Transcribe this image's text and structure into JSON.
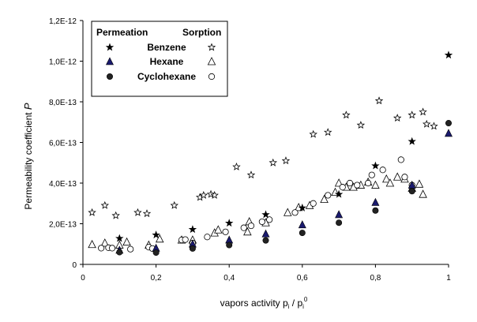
{
  "chart_data": {
    "type": "scatter",
    "xlabel": "vapors activity p",
    "xlabel_sub1": "i",
    "xlabel_mid": " / p",
    "xlabel_sub2": "i",
    "xlabel_sup": "0",
    "ylabel": "Permeability coefficient",
    "ylabel_symbol": "P",
    "xlim": [
      0,
      1
    ],
    "ylim": [
      0,
      1.2e-12
    ],
    "x_ticks": [
      {
        "value": 0,
        "label": "0"
      },
      {
        "value": 0.2,
        "label": "0,2"
      },
      {
        "value": 0.4,
        "label": "0,4"
      },
      {
        "value": 0.6,
        "label": "0,6"
      },
      {
        "value": 0.8,
        "label": "0,8"
      },
      {
        "value": 1,
        "label": "1"
      }
    ],
    "y_ticks": [
      {
        "value": 0,
        "label": "0"
      },
      {
        "value": 2e-13,
        "label": "2,0E-13"
      },
      {
        "value": 4e-13,
        "label": "4,0E-13"
      },
      {
        "value": 6e-13,
        "label": "6,0E-13"
      },
      {
        "value": 8e-13,
        "label": "8,0E-13"
      },
      {
        "value": 1e-12,
        "label": "1,0E-12"
      },
      {
        "value": 1.2e-12,
        "label": "1,2E-12"
      }
    ],
    "grid": false,
    "legend": {
      "placement": "top-left",
      "header_left": "Permeation",
      "header_right": "Sorption",
      "entries": [
        "Benzene",
        "Hexane",
        "Cyclohexane"
      ]
    },
    "series": [
      {
        "name": "Benzene",
        "kind": "Permeation",
        "marker": "filled-star",
        "color": "#000000",
        "points": [
          [
            0.1,
            1.28e-13
          ],
          [
            0.2,
            1.45e-13
          ],
          [
            0.3,
            1.72e-13
          ],
          [
            0.4,
            2.03e-13
          ],
          [
            0.5,
            2.45e-13
          ],
          [
            0.6,
            2.78e-13
          ],
          [
            0.7,
            3.45e-13
          ],
          [
            0.8,
            4.85e-13
          ],
          [
            0.9,
            6.05e-13
          ],
          [
            1.0,
            1.03e-12
          ]
        ]
      },
      {
        "name": "Hexane",
        "kind": "Permeation",
        "marker": "filled-triangle",
        "color": "#1a1a6e",
        "points": [
          [
            0.1,
            7e-14
          ],
          [
            0.2,
            8e-14
          ],
          [
            0.3,
            1e-13
          ],
          [
            0.4,
            1.2e-13
          ],
          [
            0.5,
            1.5e-13
          ],
          [
            0.6,
            1.95e-13
          ],
          [
            0.7,
            2.45e-13
          ],
          [
            0.8,
            3.05e-13
          ],
          [
            0.9,
            3.9e-13
          ],
          [
            1.0,
            6.45e-13
          ]
        ]
      },
      {
        "name": "Cyclohexane",
        "kind": "Permeation",
        "marker": "filled-circle",
        "color": "#222222",
        "points": [
          [
            0.1,
            6e-14
          ],
          [
            0.2,
            5.8e-14
          ],
          [
            0.3,
            7.8e-14
          ],
          [
            0.4,
            9.5e-14
          ],
          [
            0.5,
            1.18e-13
          ],
          [
            0.6,
            1.55e-13
          ],
          [
            0.7,
            2.05e-13
          ],
          [
            0.8,
            2.65e-13
          ],
          [
            0.9,
            3.6e-13
          ],
          [
            1.0,
            6.95e-13
          ]
        ]
      },
      {
        "name": "Benzene",
        "kind": "Sorption",
        "marker": "open-star",
        "color": "#000000",
        "points": [
          [
            0.025,
            2.55e-13
          ],
          [
            0.06,
            2.9e-13
          ],
          [
            0.09,
            2.4e-13
          ],
          [
            0.15,
            2.55e-13
          ],
          [
            0.175,
            2.5e-13
          ],
          [
            0.25,
            2.9e-13
          ],
          [
            0.32,
            3.3e-13
          ],
          [
            0.33,
            3.4e-13
          ],
          [
            0.35,
            3.45e-13
          ],
          [
            0.36,
            3.4e-13
          ],
          [
            0.42,
            4.8e-13
          ],
          [
            0.46,
            4.4e-13
          ],
          [
            0.52,
            5e-13
          ],
          [
            0.555,
            5.1e-13
          ],
          [
            0.63,
            6.4e-13
          ],
          [
            0.67,
            6.5e-13
          ],
          [
            0.72,
            7.35e-13
          ],
          [
            0.76,
            6.85e-13
          ],
          [
            0.81,
            8.05e-13
          ],
          [
            0.86,
            7.2e-13
          ],
          [
            0.9,
            7.35e-13
          ],
          [
            0.93,
            7.5e-13
          ],
          [
            0.94,
            6.9e-13
          ],
          [
            0.96,
            6.8e-13
          ]
        ]
      },
      {
        "name": "Hexane",
        "kind": "Sorption",
        "marker": "open-triangle",
        "color": "#000000",
        "points": [
          [
            0.025,
            9.8e-14
          ],
          [
            0.06,
            1.05e-13
          ],
          [
            0.1,
            9.5e-14
          ],
          [
            0.12,
            1.1e-13
          ],
          [
            0.18,
            9.5e-14
          ],
          [
            0.21,
            1.25e-13
          ],
          [
            0.27,
            1.2e-13
          ],
          [
            0.3,
            1.2e-13
          ],
          [
            0.36,
            1.55e-13
          ],
          [
            0.37,
            1.7e-13
          ],
          [
            0.45,
            1.6e-13
          ],
          [
            0.455,
            2.1e-13
          ],
          [
            0.5,
            2.05e-13
          ],
          [
            0.56,
            2.55e-13
          ],
          [
            0.59,
            2.8e-13
          ],
          [
            0.62,
            2.9e-13
          ],
          [
            0.66,
            3.2e-13
          ],
          [
            0.69,
            3.55e-13
          ],
          [
            0.7,
            4e-13
          ],
          [
            0.72,
            3.8e-13
          ],
          [
            0.74,
            3.8e-13
          ],
          [
            0.76,
            3.9e-13
          ],
          [
            0.78,
            4.05e-13
          ],
          [
            0.8,
            3.9e-13
          ],
          [
            0.83,
            4.2e-13
          ],
          [
            0.84,
            4e-13
          ],
          [
            0.86,
            4.3e-13
          ],
          [
            0.88,
            4.2e-13
          ],
          [
            0.9,
            3.75e-13
          ],
          [
            0.92,
            3.95e-13
          ],
          [
            0.93,
            3.45e-13
          ]
        ]
      },
      {
        "name": "Cyclohexane",
        "kind": "Sorption",
        "marker": "open-circle",
        "color": "#000000",
        "points": [
          [
            0.05,
            8e-14
          ],
          [
            0.07,
            8.2e-14
          ],
          [
            0.08,
            8e-14
          ],
          [
            0.13,
            7.5e-14
          ],
          [
            0.18,
            8.5e-14
          ],
          [
            0.19,
            7.8e-14
          ],
          [
            0.27,
            1.2e-13
          ],
          [
            0.28,
            1.22e-13
          ],
          [
            0.3,
            1.05e-13
          ],
          [
            0.34,
            1.35e-13
          ],
          [
            0.39,
            1.6e-13
          ],
          [
            0.44,
            1.8e-13
          ],
          [
            0.46,
            1.9e-13
          ],
          [
            0.49,
            2.1e-13
          ],
          [
            0.51,
            2.2e-13
          ],
          [
            0.58,
            2.55e-13
          ],
          [
            0.63,
            3e-13
          ],
          [
            0.67,
            3.4e-13
          ],
          [
            0.71,
            3.8e-13
          ],
          [
            0.73,
            4e-13
          ],
          [
            0.75,
            3.9e-13
          ],
          [
            0.78,
            4e-13
          ],
          [
            0.79,
            4.4e-13
          ],
          [
            0.82,
            4.65e-13
          ],
          [
            0.87,
            5.15e-13
          ],
          [
            0.88,
            4.3e-13
          ],
          [
            0.9,
            3.9e-13
          ]
        ]
      }
    ]
  }
}
